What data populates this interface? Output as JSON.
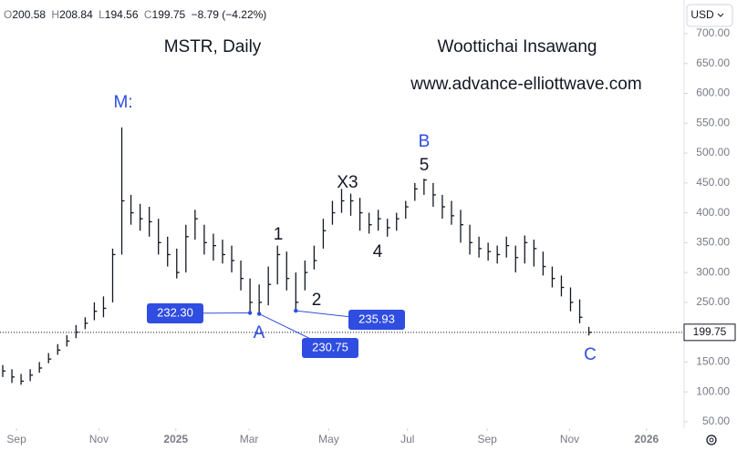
{
  "chart_data": {
    "type": "ohlc",
    "title": "MSTR, Daily",
    "subtitle": "Woottichai Insawang",
    "website": "www.advance-elliottwave.com",
    "currency": "USD",
    "header": {
      "o_label": "O",
      "open": "200.58",
      "h_label": "H",
      "high": "208.84",
      "l_label": "L",
      "low": "194.56",
      "c_label": "C",
      "close": "199.75",
      "change": "−8.79 (−4.22%)"
    },
    "categories": [
      null,
      null,
      null,
      null,
      null,
      null,
      null,
      null,
      null,
      null,
      null,
      null,
      null,
      null,
      null,
      null,
      null,
      null,
      null,
      null,
      null,
      null,
      null,
      null,
      null,
      null,
      null,
      null,
      null,
      null,
      null,
      null,
      null,
      null,
      null,
      null,
      null,
      null,
      null,
      null,
      null,
      null,
      null,
      null,
      null,
      null,
      null,
      null,
      null,
      null,
      null,
      null,
      null,
      null,
      null,
      null,
      null,
      null,
      null,
      null,
      null,
      null,
      null,
      null,
      null
    ],
    "high": [
      145,
      138,
      130,
      138,
      150,
      165,
      180,
      195,
      212,
      225,
      250,
      260,
      340,
      543,
      430,
      415,
      410,
      390,
      360,
      340,
      380,
      405,
      380,
      365,
      355,
      345,
      320,
      290,
      280,
      310,
      345,
      335,
      300,
      320,
      345,
      390,
      420,
      440,
      432,
      425,
      400,
      405,
      390,
      400,
      420,
      450,
      457,
      450,
      430,
      420,
      405,
      380,
      360,
      350,
      345,
      360,
      345,
      362,
      355,
      335,
      310,
      295,
      275,
      255,
      208.84
    ],
    "low": [
      125,
      115,
      112,
      118,
      132,
      148,
      162,
      176,
      190,
      205,
      220,
      225,
      250,
      330,
      380,
      370,
      360,
      330,
      310,
      290,
      300,
      355,
      330,
      320,
      315,
      300,
      270,
      232.3,
      230.75,
      245,
      280,
      270,
      235.93,
      270,
      305,
      340,
      380,
      400,
      395,
      370,
      365,
      370,
      360,
      370,
      390,
      420,
      430,
      410,
      390,
      380,
      350,
      330,
      325,
      320,
      315,
      325,
      300,
      315,
      310,
      295,
      275,
      260,
      235,
      215,
      194.56
    ],
    "close": [
      135,
      125,
      118,
      128,
      140,
      155,
      170,
      185,
      200,
      215,
      235,
      240,
      330,
      420,
      400,
      390,
      385,
      350,
      330,
      300,
      360,
      390,
      350,
      345,
      330,
      320,
      290,
      250,
      250,
      280,
      330,
      290,
      250,
      300,
      320,
      370,
      400,
      420,
      420,
      400,
      380,
      390,
      375,
      390,
      410,
      440,
      455,
      430,
      410,
      395,
      380,
      350,
      340,
      335,
      330,
      345,
      325,
      350,
      340,
      310,
      290,
      275,
      250,
      225,
      199.75
    ],
    "color": "#131722",
    "xlim": [
      -0.3,
      74.4
    ],
    "xticks": [
      {
        "value": 1.5,
        "label": "Sep"
      },
      {
        "value": 10.5,
        "label": "Nov"
      },
      {
        "value": 18.9,
        "label": "2025"
      },
      {
        "value": 26.9,
        "label": "Mar"
      },
      {
        "value": 35.6,
        "label": "May"
      },
      {
        "value": 44.2,
        "label": "Jul"
      },
      {
        "value": 52.9,
        "label": "Sep"
      },
      {
        "value": 61.9,
        "label": "Nov"
      },
      {
        "value": 70.3,
        "label": "2026"
      }
    ],
    "ylim": [
      39.3,
      756.4
    ],
    "yticks": [
      {
        "value": 50,
        "label": "50.00"
      },
      {
        "value": 100,
        "label": "100.00"
      },
      {
        "value": 150,
        "label": "150.00"
      },
      {
        "value": 200,
        "label": "200.00"
      },
      {
        "value": 250,
        "label": "250.00"
      },
      {
        "value": 300,
        "label": "300.00"
      },
      {
        "value": 350,
        "label": "350.00"
      },
      {
        "value": 400,
        "label": "400.00"
      },
      {
        "value": 450,
        "label": "450.00"
      },
      {
        "value": 500,
        "label": "500.00"
      },
      {
        "value": 550,
        "label": "550.00"
      },
      {
        "value": 600,
        "label": "600.00"
      },
      {
        "value": 650,
        "label": "650.00"
      },
      {
        "value": 700,
        "label": "700.00"
      }
    ],
    "wave_labels": [
      "M:",
      "1",
      "2",
      "X3",
      "4",
      "5",
      "B",
      "A",
      "C"
    ],
    "price_marks": [
      {
        "value": 232.3,
        "label": "232.30"
      },
      {
        "value": 230.75,
        "label": "230.75"
      },
      {
        "value": 235.93,
        "label": "235.93"
      }
    ]
  }
}
